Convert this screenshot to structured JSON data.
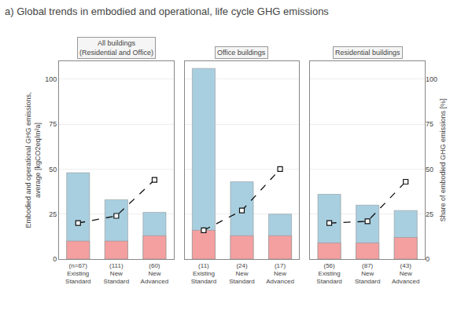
{
  "title": "a) Global trends in embodied and operational, life cycle GHG emissions",
  "chart_data": [
    {
      "type": "bar",
      "title": "All buildings (Residential and Office)",
      "ylabel": "Embodied and operational GHG emissions, average [kgCO2eq/m²a]",
      "categories": [
        "(n=67)\nExisting\nStandard",
        "(111)\nNew\nStandard",
        "(60)\nNew\nAdvanced"
      ],
      "series": [
        {
          "color": "#a8cfe0",
          "values": [
            48,
            33,
            26
          ]
        },
        {
          "color": "#f4a0a0",
          "values": [
            10,
            10,
            13
          ]
        },
        {
          "type": "line",
          "axis": "y2",
          "color": "#111111",
          "line_style": "dashed",
          "marker": "square",
          "values": [
            20,
            24,
            44
          ]
        }
      ],
      "ylim": [
        0,
        110
      ],
      "yticks": [
        0,
        25,
        50,
        75,
        100
      ],
      "y2lim": [
        0,
        110
      ],
      "y2ticks": [
        0,
        25,
        50,
        75,
        100
      ],
      "grid": true
    },
    {
      "type": "bar",
      "title": "Office buildings",
      "categories": [
        "(11)\nExisting\nStandard",
        "(24)\nNew\nStandard",
        "(17)\nNew\nAdvanced"
      ],
      "series": [
        {
          "color": "#a8cfe0",
          "values": [
            106,
            43,
            25
          ]
        },
        {
          "color": "#f4a0a0",
          "values": [
            16,
            13,
            13
          ]
        },
        {
          "type": "line",
          "axis": "y2",
          "color": "#111111",
          "line_style": "dashed",
          "marker": "square",
          "values": [
            16,
            27,
            50
          ]
        }
      ],
      "ylim": [
        0,
        110
      ],
      "yticks": [
        0,
        25,
        50,
        75,
        100
      ],
      "y2lim": [
        0,
        110
      ],
      "y2ticks": [
        0,
        25,
        50,
        75,
        100
      ],
      "grid": true,
      "tick_labels": "x"
    },
    {
      "type": "bar",
      "title": "Residential buildings",
      "y2label": "Share of embodied GHG emissions [%]",
      "categories": [
        "(56)\nExisting\nStandard",
        "(87)\nNew\nStandard",
        "(43)\nNew\nAdvanced"
      ],
      "series": [
        {
          "color": "#a8cfe0",
          "values": [
            36,
            30,
            27
          ]
        },
        {
          "color": "#f4a0a0",
          "values": [
            9,
            9,
            12
          ]
        },
        {
          "type": "line",
          "axis": "y2",
          "color": "#111111",
          "line_style": "dashed",
          "marker": "square",
          "values": [
            20,
            21,
            43
          ]
        }
      ],
      "ylim": [
        0,
        110
      ],
      "yticks": [
        0,
        25,
        50,
        75,
        100
      ],
      "y2lim": [
        0,
        110
      ],
      "y2ticks": [
        0,
        25,
        50,
        75,
        100
      ],
      "grid": true
    }
  ]
}
